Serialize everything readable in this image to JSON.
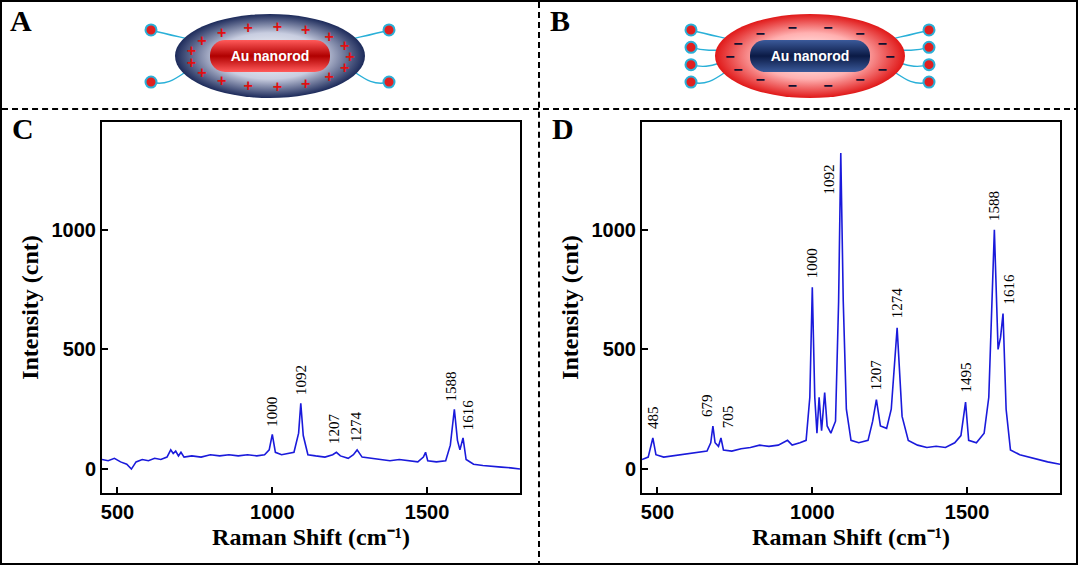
{
  "figure": {
    "diagrams": [
      {
        "panel": "A",
        "label": "Au nanorod",
        "charge": "+",
        "charge_count": 17,
        "ligands": 4
      },
      {
        "panel": "B",
        "label": "Au nanorod",
        "charge": "−",
        "charge_count": 14,
        "ligands": 8
      }
    ]
  },
  "chart_data": [
    {
      "panel": "C",
      "type": "line",
      "color": "#1a1adb",
      "xlabel": "Raman Shift (cm⁻¹)",
      "ylabel": "Intensity (cnt)",
      "xlim": [
        450,
        1800
      ],
      "ylim": [
        -100,
        1450
      ],
      "xticks": [
        500,
        1000,
        1500
      ],
      "yticks": [
        0,
        500,
        1000
      ],
      "grid": false,
      "x": [
        450,
        470,
        490,
        510,
        530,
        545,
        560,
        580,
        600,
        620,
        640,
        660,
        672,
        680,
        688,
        697,
        705,
        715,
        740,
        770,
        800,
        830,
        860,
        890,
        920,
        950,
        975,
        990,
        1000,
        1010,
        1030,
        1050,
        1070,
        1085,
        1092,
        1100,
        1115,
        1140,
        1170,
        1195,
        1207,
        1220,
        1245,
        1262,
        1274,
        1290,
        1320,
        1350,
        1380,
        1410,
        1440,
        1470,
        1488,
        1495,
        1502,
        1530,
        1560,
        1575,
        1588,
        1598,
        1606,
        1616,
        1626,
        1650,
        1680,
        1710,
        1740,
        1770,
        1800
      ],
      "values": [
        40,
        35,
        45,
        30,
        20,
        0,
        30,
        40,
        35,
        45,
        40,
        50,
        80,
        65,
        75,
        55,
        70,
        50,
        55,
        50,
        60,
        55,
        60,
        55,
        60,
        55,
        60,
        80,
        145,
        70,
        60,
        65,
        70,
        150,
        275,
        140,
        60,
        55,
        50,
        60,
        70,
        55,
        45,
        60,
        80,
        50,
        45,
        40,
        35,
        40,
        35,
        30,
        50,
        70,
        35,
        30,
        35,
        100,
        250,
        120,
        80,
        130,
        40,
        20,
        15,
        10,
        8,
        5,
        0
      ],
      "annotations": [
        {
          "text": "1000",
          "x": 1000,
          "y": 170
        },
        {
          "text": "1092",
          "x": 1092,
          "y": 300
        },
        {
          "text": "1207",
          "x": 1200,
          "y": 95
        },
        {
          "text": "1274",
          "x": 1272,
          "y": 105
        },
        {
          "text": "1588",
          "x": 1578,
          "y": 275
        },
        {
          "text": "1616",
          "x": 1635,
          "y": 155
        }
      ]
    },
    {
      "panel": "D",
      "type": "line",
      "color": "#1a1adb",
      "xlabel": "Raman Shift (cm⁻¹)",
      "ylabel": "Intensity (cnt)",
      "xlim": [
        450,
        1800
      ],
      "ylim": [
        -100,
        1450
      ],
      "xticks": [
        500,
        1000,
        1500
      ],
      "yticks": [
        0,
        500,
        1000
      ],
      "grid": false,
      "x": [
        450,
        470,
        485,
        495,
        520,
        550,
        580,
        610,
        640,
        660,
        672,
        679,
        686,
        697,
        705,
        713,
        740,
        770,
        800,
        830,
        860,
        890,
        920,
        935,
        960,
        980,
        992,
        1000,
        1008,
        1015,
        1022,
        1030,
        1040,
        1048,
        1060,
        1075,
        1085,
        1092,
        1100,
        1110,
        1125,
        1150,
        1180,
        1195,
        1207,
        1220,
        1240,
        1255,
        1274,
        1290,
        1310,
        1340,
        1370,
        1400,
        1430,
        1460,
        1480,
        1495,
        1505,
        1530,
        1555,
        1570,
        1588,
        1600,
        1608,
        1616,
        1626,
        1640,
        1670,
        1700,
        1730,
        1760,
        1800
      ],
      "values": [
        40,
        50,
        130,
        60,
        50,
        55,
        60,
        65,
        70,
        75,
        110,
        180,
        110,
        95,
        130,
        80,
        75,
        85,
        90,
        100,
        95,
        100,
        120,
        100,
        110,
        120,
        300,
        760,
        300,
        150,
        300,
        160,
        320,
        180,
        150,
        200,
        700,
        1320,
        700,
        250,
        120,
        110,
        120,
        200,
        290,
        180,
        170,
        250,
        590,
        220,
        120,
        100,
        90,
        95,
        90,
        110,
        140,
        280,
        120,
        110,
        150,
        300,
        1000,
        500,
        550,
        650,
        250,
        80,
        60,
        50,
        40,
        30,
        20
      ],
      "annotations": [
        {
          "text": "485",
          "x": 485,
          "y": 160
        },
        {
          "text": "679",
          "x": 662,
          "y": 210
        },
        {
          "text": "705",
          "x": 728,
          "y": 160
        },
        {
          "text": "1000",
          "x": 1000,
          "y": 790
        },
        {
          "text": "1092",
          "x": 1055,
          "y": 1140
        },
        {
          "text": "1207",
          "x": 1207,
          "y": 320
        },
        {
          "text": "1274",
          "x": 1274,
          "y": 620
        },
        {
          "text": "1495",
          "x": 1495,
          "y": 310
        },
        {
          "text": "1588",
          "x": 1585,
          "y": 1030
        },
        {
          "text": "1616",
          "x": 1634,
          "y": 680
        }
      ]
    }
  ]
}
